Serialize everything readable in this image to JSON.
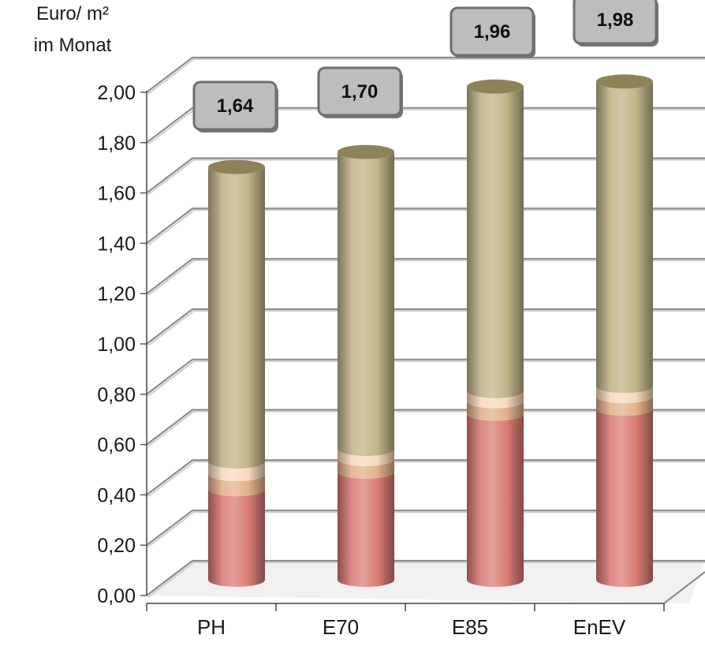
{
  "chart_data": {
    "type": "bar",
    "stacked": true,
    "style": "3d-cylinder",
    "ylabel_lines": [
      "Euro/ m²",
      "im Monat"
    ],
    "categories": [
      "PH",
      "E70",
      "E85",
      "EnEV"
    ],
    "series": [
      {
        "values": [
          0.36,
          0.43,
          0.66,
          0.68
        ],
        "color": "#d97a72"
      },
      {
        "values": [
          0.06,
          0.05,
          0.05,
          0.05
        ],
        "color": "#e2b08a"
      },
      {
        "values": [
          0.05,
          0.04,
          0.04,
          0.04
        ],
        "color": "#f7d8bd"
      },
      {
        "values": [
          1.17,
          1.18,
          1.21,
          1.21
        ],
        "color": "#bfb387"
      }
    ],
    "totals": [
      "1,64",
      "1,70",
      "1,96",
      "1,98"
    ],
    "ylim": [
      0,
      2.0
    ],
    "yticks": [
      "0,00",
      "0,20",
      "0,40",
      "0,60",
      "0,80",
      "1,00",
      "1,20",
      "1,40",
      "1,60",
      "1,80",
      "2,00"
    ],
    "grid": true
  }
}
